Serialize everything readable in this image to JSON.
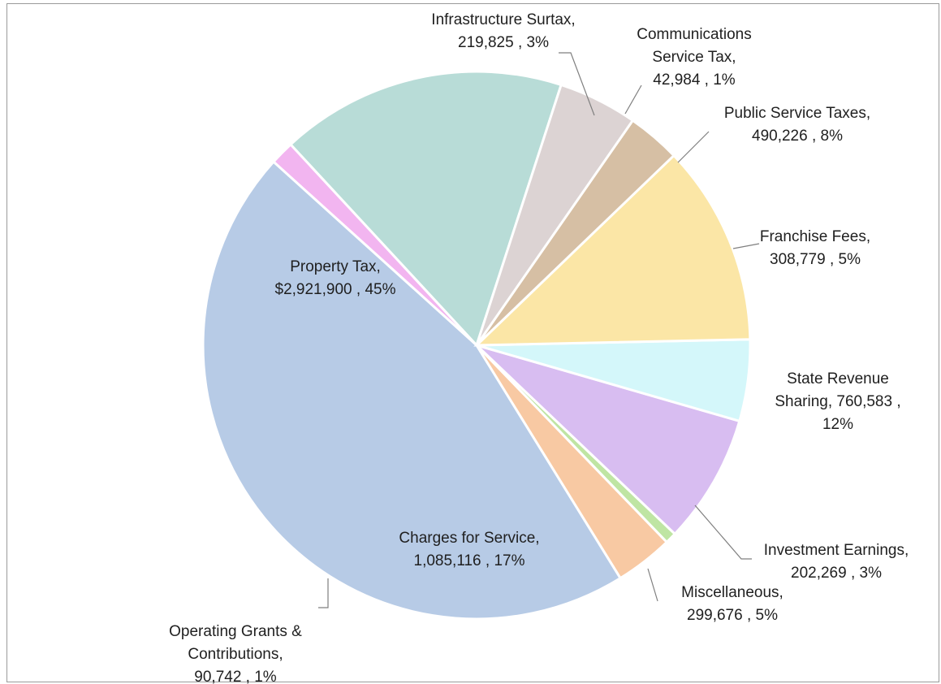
{
  "chart_data": {
    "type": "pie",
    "title": "",
    "start_angle_deg": 72,
    "direction": "counterclockwise",
    "slices": [
      {
        "name": "Charges for Service",
        "value": "1,085,116",
        "percent": "17%",
        "color": "#b8dcd7",
        "label_lines": [
          "Charges for Service,",
          "1,085,116 , 17%"
        ]
      },
      {
        "name": "Operating Grants & Contributions",
        "value": "90,742",
        "percent": "1%",
        "color": "#f2b5f0",
        "label_lines": [
          "Operating Grants &",
          "Contributions,",
          "90,742 , 1%"
        ]
      },
      {
        "name": "Property Tax",
        "value": "$2,921,900",
        "percent": "45%",
        "color": "#b7cbe6",
        "label_lines": [
          "Property Tax,",
          "$2,921,900 , 45%"
        ]
      },
      {
        "name": "Infrastructure Surtax",
        "value": "219,825",
        "percent": "3%",
        "color": "#f8c9a3",
        "label_lines": [
          "Infrastructure Surtax,",
          "219,825 , 3%"
        ]
      },
      {
        "name": "Communications Service Tax",
        "value": "42,984",
        "percent": "1%",
        "color": "#bfe5a3",
        "label_lines": [
          "Communications",
          "Service Tax,",
          "42,984 , 1%"
        ]
      },
      {
        "name": "Public Service Taxes",
        "value": "490,226",
        "percent": "8%",
        "color": "#d8bdf1",
        "label_lines": [
          "Public Service Taxes,",
          "490,226 , 8%"
        ]
      },
      {
        "name": "Franchise Fees",
        "value": "308,779",
        "percent": "5%",
        "color": "#d4f7fa",
        "label_lines": [
          "Franchise Fees,",
          "308,779 , 5%"
        ]
      },
      {
        "name": "State Revenue Sharing",
        "value": "760,583",
        "percent": "12%",
        "color": "#fbe6a6",
        "label_lines": [
          "State Revenue",
          "Sharing,  760,583 ,",
          "12%"
        ]
      },
      {
        "name": "Investment Earnings",
        "value": "202,269",
        "percent": "3%",
        "color": "#d6bfa4",
        "label_lines": [
          "Investment Earnings,",
          "202,269 , 3%"
        ]
      },
      {
        "name": "Miscellaneous",
        "value": "299,676",
        "percent": "5%",
        "color": "#dcd3d3",
        "label_lines": [
          "Miscellaneous,",
          "299,676 , 5%"
        ]
      }
    ],
    "legend": "none"
  }
}
